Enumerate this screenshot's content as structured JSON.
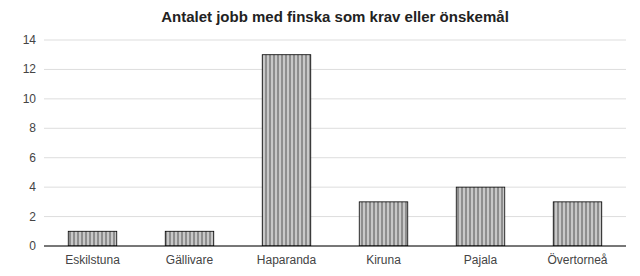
{
  "chart_data": {
    "type": "bar",
    "title": "Antalet jobb med finska som krav eller önskemål",
    "categories": [
      "Eskilstuna",
      "Gällivare",
      "Haparanda",
      "Kiruna",
      "Pajala",
      "Övertorneå"
    ],
    "values": [
      1,
      1,
      13,
      3,
      4,
      3
    ],
    "color": "#c8c8c8",
    "ylim": [
      0,
      14
    ],
    "yticks": [
      0,
      2,
      4,
      6,
      8,
      10,
      12,
      14
    ],
    "grid": true
  }
}
